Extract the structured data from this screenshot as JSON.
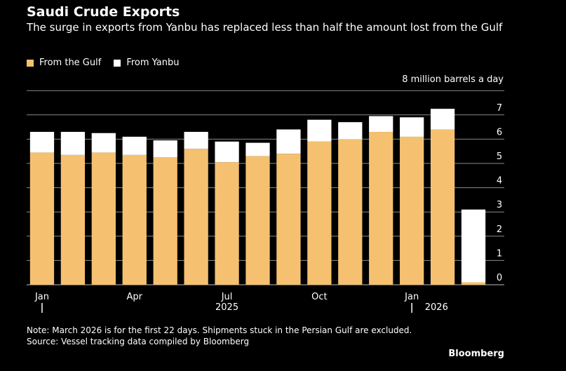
{
  "header": {
    "title": "Saudi Crude Exports",
    "subtitle": "The surge in exports from Yanbu has replaced less than half the amount lost from the Gulf"
  },
  "footer": {
    "note": "Note: March 2026 is for the first 22 days. Shipments stuck in the Persian Gulf are excluded.",
    "source": "Source: Vessel tracking data compiled by Bloomberg",
    "brand": "Bloomberg"
  },
  "colors": {
    "gulf": "#f5c170",
    "yanbu": "#ffffff",
    "background": "#000000",
    "grid": "#8a8a8a"
  },
  "chart_data": {
    "type": "bar",
    "stacked": true,
    "title": "Saudi Crude Exports",
    "unit_label": "8 million barrels a day",
    "categories": [
      "Jan 2025",
      "Feb 2025",
      "Mar 2025",
      "Apr 2025",
      "May 2025",
      "Jun 2025",
      "Jul 2025",
      "Aug 2025",
      "Sep 2025",
      "Oct 2025",
      "Nov 2025",
      "Dec 2025",
      "Jan 2026",
      "Feb 2026",
      "Mar 2026"
    ],
    "series": [
      {
        "name": "From the Gulf",
        "color": "#f5c170",
        "values": [
          5.45,
          5.35,
          5.45,
          5.35,
          5.25,
          5.6,
          5.05,
          5.3,
          5.4,
          5.9,
          6.0,
          6.3,
          6.1,
          6.4,
          0.1
        ]
      },
      {
        "name": "From Yanbu",
        "color": "#ffffff",
        "values": [
          0.85,
          0.95,
          0.8,
          0.75,
          0.7,
          0.7,
          0.85,
          0.55,
          1.0,
          0.9,
          0.7,
          0.65,
          0.8,
          0.85,
          3.0
        ]
      }
    ],
    "y_ticks": [
      "0",
      "1",
      "2",
      "3",
      "4",
      "5",
      "6",
      "7"
    ],
    "ylim": [
      0,
      8
    ],
    "x_tick_labels": [
      {
        "label": "Jan",
        "index": 0
      },
      {
        "label": "Apr",
        "index": 3
      },
      {
        "label": "Jul",
        "index": 6
      },
      {
        "label": "Oct",
        "index": 9
      },
      {
        "label": "Jan",
        "index": 12
      }
    ],
    "year_labels": [
      {
        "label": "2025",
        "from": 0,
        "to": 11
      },
      {
        "label": "2026",
        "from": 12,
        "to": 14
      }
    ],
    "legend": [
      "From the Gulf",
      "From Yanbu"
    ],
    "legend_position": "top-left",
    "grid": true
  }
}
